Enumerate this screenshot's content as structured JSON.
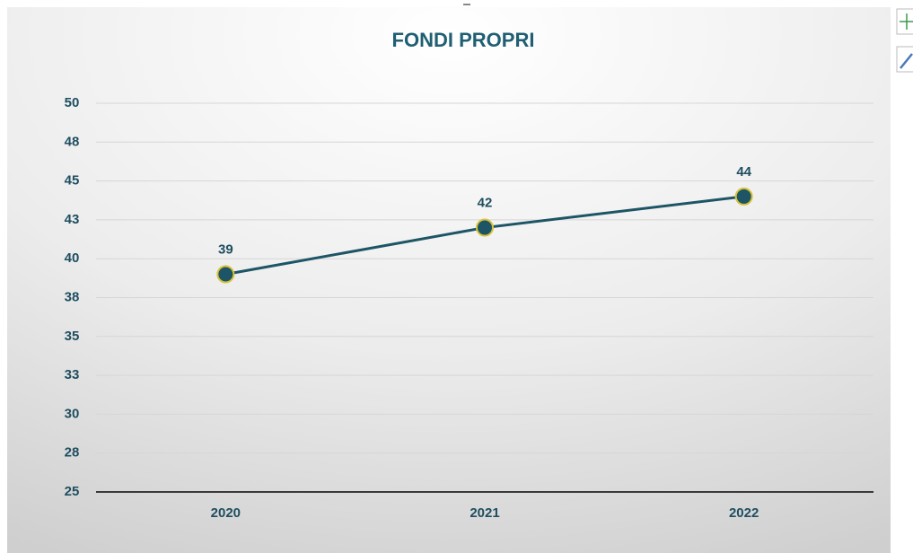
{
  "chart_data": {
    "type": "line",
    "title": "FONDI PROPRI",
    "categories": [
      "2020",
      "2021",
      "2022"
    ],
    "values": [
      39,
      42,
      44
    ],
    "color": "#1d5566",
    "marker_edge_color": "#d8c23a",
    "ylim": [
      25,
      50
    ],
    "yticks": [
      25,
      {
        "value": 27.5,
        "label": "28"
      },
      30,
      {
        "value": 32.5,
        "label": "33"
      },
      35,
      {
        "value": 37.5,
        "label": "38"
      },
      40,
      {
        "value": 42.5,
        "label": "43"
      },
      45,
      {
        "value": 47.5,
        "label": "48"
      },
      50
    ],
    "grid": true
  }
}
